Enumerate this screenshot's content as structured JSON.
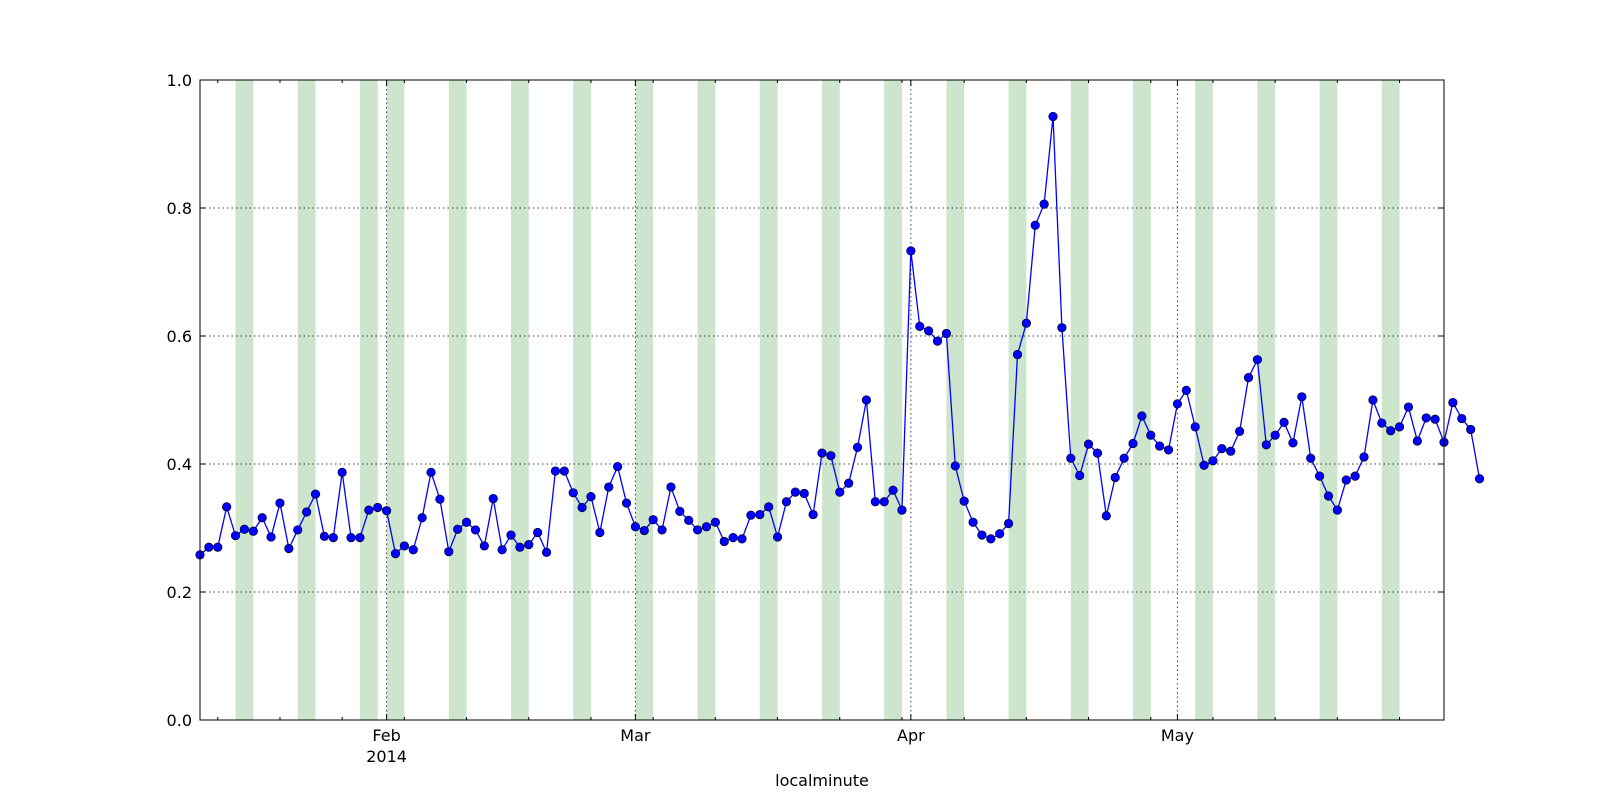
{
  "chart_data": {
    "type": "line",
    "title": "",
    "xlabel": "localminute",
    "ylabel": "",
    "ylim": [
      0,
      1.0
    ],
    "xlim": [
      "2014-01-11",
      "2014-05-31"
    ],
    "grid": true,
    "y_ticks": [
      {
        "value": 0.0,
        "label": "0.0"
      },
      {
        "value": 0.2,
        "label": "0.2"
      },
      {
        "value": 0.4,
        "label": "0.4"
      },
      {
        "value": 0.6,
        "label": "0.6"
      },
      {
        "value": 0.8,
        "label": "0.8"
      },
      {
        "value": 1.0,
        "label": "1.0"
      }
    ],
    "x_major_ticks": [
      {
        "date": "2014-02-01",
        "label": "Feb",
        "sublabel": "2014"
      },
      {
        "date": "2014-03-01",
        "label": "Mar",
        "sublabel": ""
      },
      {
        "date": "2014-04-01",
        "label": "Apr",
        "sublabel": ""
      },
      {
        "date": "2014-05-01",
        "label": "May",
        "sublabel": ""
      }
    ],
    "x_minor_ticks": [
      "2014-01-13",
      "2014-01-20",
      "2014-01-27",
      "2014-02-03",
      "2014-02-10",
      "2014-02-17",
      "2014-02-24",
      "2014-03-03",
      "2014-03-10",
      "2014-03-17",
      "2014-03-24",
      "2014-03-31",
      "2014-04-07",
      "2014-04-14",
      "2014-04-21",
      "2014-04-28",
      "2014-05-05",
      "2014-05-12",
      "2014-05-19",
      "2014-05-26"
    ],
    "weekend_shading": {
      "color": "#cce5cc",
      "spans": [
        [
          "2014-01-15",
          "2014-01-17"
        ],
        [
          "2014-01-22",
          "2014-01-24"
        ],
        [
          "2014-01-29",
          "2014-01-31"
        ],
        [
          "2014-02-01",
          "2014-02-03"
        ],
        [
          "2014-02-08",
          "2014-02-10"
        ],
        [
          "2014-02-15",
          "2014-02-17"
        ],
        [
          "2014-02-22",
          "2014-02-24"
        ],
        [
          "2014-03-01",
          "2014-03-03"
        ],
        [
          "2014-03-08",
          "2014-03-10"
        ],
        [
          "2014-03-15",
          "2014-03-17"
        ],
        [
          "2014-03-22",
          "2014-03-24"
        ],
        [
          "2014-03-29",
          "2014-03-31"
        ],
        [
          "2014-04-05",
          "2014-04-07"
        ],
        [
          "2014-04-12",
          "2014-04-14"
        ],
        [
          "2014-04-19",
          "2014-04-21"
        ],
        [
          "2014-04-26",
          "2014-04-28"
        ],
        [
          "2014-05-03",
          "2014-05-05"
        ],
        [
          "2014-05-10",
          "2014-05-12"
        ],
        [
          "2014-05-17",
          "2014-05-19"
        ],
        [
          "2014-05-24",
          "2014-05-26"
        ]
      ]
    },
    "series": [
      {
        "color": "#0000ff",
        "x_start": "2014-01-11",
        "x_step_days": 1,
        "values": [
          0.258,
          0.27,
          0.27,
          0.333,
          0.288,
          0.298,
          0.295,
          0.316,
          0.286,
          0.339,
          0.268,
          0.297,
          0.325,
          0.353,
          0.287,
          0.285,
          0.387,
          0.285,
          0.285,
          0.328,
          0.332,
          0.327,
          0.26,
          0.272,
          0.266,
          0.316,
          0.387,
          0.345,
          0.263,
          0.298,
          0.309,
          0.297,
          0.272,
          0.346,
          0.266,
          0.289,
          0.27,
          0.274,
          0.293,
          0.262,
          0.389,
          0.389,
          0.355,
          0.332,
          0.349,
          0.293,
          0.364,
          0.396,
          0.339,
          0.302,
          0.296,
          0.313,
          0.297,
          0.364,
          0.326,
          0.312,
          0.297,
          0.302,
          0.309,
          0.279,
          0.285,
          0.283,
          0.32,
          0.321,
          0.333,
          0.286,
          0.341,
          0.356,
          0.354,
          0.321,
          0.417,
          0.413,
          0.356,
          0.37,
          0.426,
          0.5,
          0.341,
          0.341,
          0.359,
          0.328,
          0.733,
          0.615,
          0.608,
          0.592,
          0.604,
          0.397,
          0.342,
          0.309,
          0.289,
          0.283,
          0.291,
          0.307,
          0.571,
          0.62,
          0.773,
          0.806,
          0.943,
          0.613,
          0.409,
          0.382,
          0.431,
          0.417,
          0.319,
          0.379,
          0.409,
          0.432,
          0.475,
          0.445,
          0.428,
          0.422,
          0.494,
          0.515,
          0.458,
          0.398,
          0.405,
          0.424,
          0.42,
          0.451,
          0.535,
          0.563,
          0.43,
          0.445,
          0.465,
          0.433,
          0.505,
          0.409,
          0.381,
          0.35,
          0.328,
          0.375,
          0.381,
          0.411,
          0.5,
          0.464,
          0.452,
          0.458,
          0.489,
          0.436,
          0.472,
          0.47,
          0.434,
          0.496,
          0.471,
          0.454,
          0.377
        ]
      }
    ]
  }
}
